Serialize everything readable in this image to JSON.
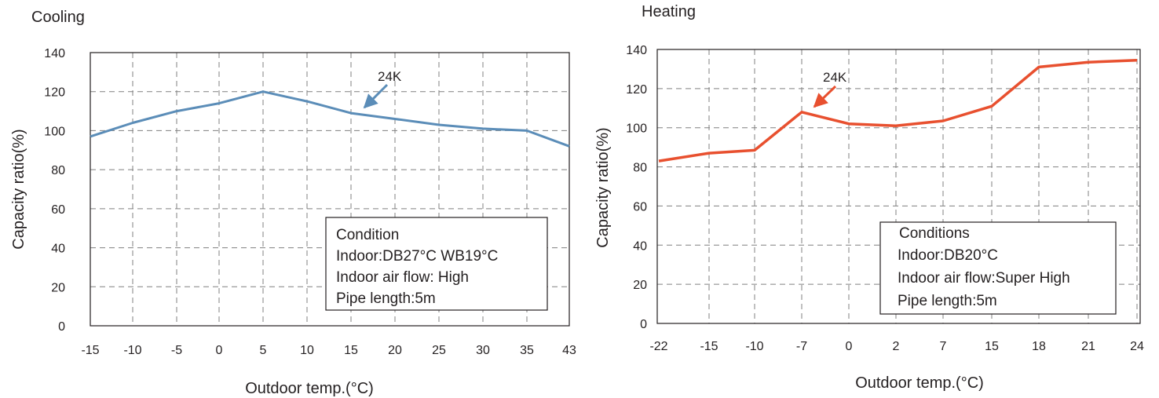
{
  "colors": {
    "cooling": "#5b8db8",
    "heating": "#e8502f",
    "grid": "#808080",
    "text": "#231f20"
  },
  "chart_data": [
    {
      "id": "cooling",
      "type": "line",
      "title": "Cooling",
      "xlabel": "Outdoor temp.(°C)",
      "ylabel": "Capacity ratio(%)",
      "categories": [
        "-15",
        "-10",
        "-5",
        "0",
        "5",
        "10",
        "15",
        "20",
        "25",
        "30",
        "35",
        "43"
      ],
      "ylim": [
        0,
        140
      ],
      "yticks": [
        0,
        20,
        40,
        60,
        80,
        100,
        120,
        140
      ],
      "grid": true,
      "series": [
        {
          "values": [
            97,
            104,
            110,
            114,
            120,
            115,
            109,
            106,
            103,
            101,
            100,
            92
          ]
        }
      ],
      "annotation": {
        "text": "24K",
        "points_to": {
          "x": "15",
          "y": 109
        }
      },
      "condition_box": [
        "Condition",
        "Indoor:DB27°C WB19°C",
        "Indoor air flow: High",
        "Pipe length:5m"
      ]
    },
    {
      "id": "heating",
      "type": "line",
      "title": "Heating",
      "xlabel": "Outdoor temp.(°C)",
      "ylabel": "Capacity ratio(%)",
      "categories": [
        "-22",
        "-15",
        "-10",
        "-7",
        "0",
        "2",
        "7",
        "15",
        "18",
        "21",
        "24"
      ],
      "ylim": [
        0,
        140
      ],
      "yticks": [
        0,
        20,
        40,
        60,
        80,
        100,
        120,
        140
      ],
      "grid": true,
      "series": [
        {
          "values": [
            83,
            87,
            88.5,
            108,
            102,
            101,
            103.5,
            111,
            131,
            133.5,
            134.5
          ]
        }
      ],
      "annotation": {
        "text": "24K",
        "points_to": {
          "x": "-7",
          "y": 108
        }
      },
      "condition_box": [
        "Conditions",
        "Indoor:DB20°C",
        "Indoor air flow:Super High",
        "Pipe length:5m"
      ]
    }
  ]
}
